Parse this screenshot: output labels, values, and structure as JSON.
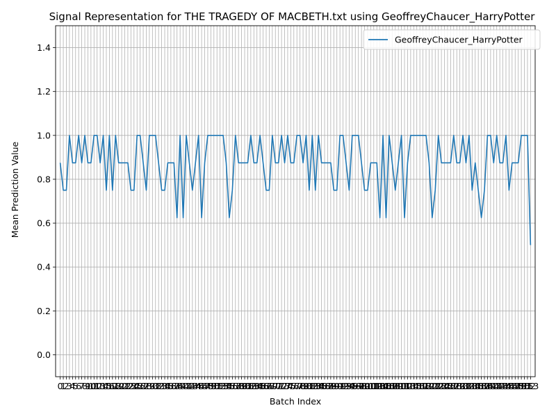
{
  "chart_data": {
    "type": "line",
    "title": "Signal Representation for THE TRAGEDY OF MACBETH.txt using GeoffreyChaucer_HarryPotter",
    "xlabel": "Batch Index",
    "ylabel": "Mean Prediction Value",
    "xlim": [
      -1.5,
      154.5
    ],
    "ylim": [
      -0.1,
      1.5
    ],
    "yticks": [
      "0.0",
      "0.2",
      "0.4",
      "0.6",
      "0.8",
      "1.0",
      "1.2",
      "1.4"
    ],
    "grid": true,
    "legend_position": "top-right",
    "colors": {
      "series": "#1f77b4",
      "grid": "#b0b0b0",
      "axes": "#000000"
    },
    "x": [
      0,
      1,
      2,
      3,
      4,
      5,
      6,
      7,
      8,
      9,
      10,
      11,
      12,
      13,
      14,
      15,
      16,
      17,
      18,
      19,
      20,
      21,
      22,
      23,
      24,
      25,
      26,
      27,
      28,
      29,
      30,
      31,
      32,
      33,
      34,
      35,
      36,
      37,
      38,
      39,
      40,
      41,
      42,
      43,
      44,
      45,
      46,
      47,
      48,
      49,
      50,
      51,
      52,
      53,
      54,
      55,
      56,
      57,
      58,
      59,
      60,
      61,
      62,
      63,
      64,
      65,
      66,
      67,
      68,
      69,
      70,
      71,
      72,
      73,
      74,
      75,
      76,
      77,
      78,
      79,
      80,
      81,
      82,
      83,
      84,
      85,
      86,
      87,
      88,
      89,
      90,
      91,
      92,
      93,
      94,
      95,
      96,
      97,
      98,
      99,
      100,
      101,
      102,
      103,
      104,
      105,
      106,
      107,
      108,
      109,
      110,
      111,
      112,
      113,
      114,
      115,
      116,
      117,
      118,
      119,
      120,
      121,
      122,
      123,
      124,
      125,
      126,
      127,
      128,
      129,
      130,
      131,
      132,
      133,
      134,
      135,
      136,
      137,
      138,
      139,
      140,
      141,
      142,
      143,
      144,
      145,
      146,
      147,
      148,
      149,
      150,
      151,
      152,
      153
    ],
    "series": [
      {
        "name": "GeoffreyChaucer_HarryPotter",
        "values": [
          0.875,
          0.75,
          0.75,
          1.0,
          0.875,
          0.875,
          1.0,
          0.875,
          1.0,
          0.875,
          0.875,
          1.0,
          1.0,
          0.875,
          1.0,
          0.75,
          1.0,
          0.75,
          1.0,
          0.875,
          0.875,
          0.875,
          0.875,
          0.75,
          0.75,
          1.0,
          1.0,
          0.875,
          0.75,
          1.0,
          1.0,
          1.0,
          0.875,
          0.75,
          0.75,
          0.875,
          0.875,
          0.875,
          0.625,
          1.0,
          0.625,
          1.0,
          0.875,
          0.75,
          0.875,
          1.0,
          0.625,
          0.875,
          1.0,
          1.0,
          1.0,
          1.0,
          1.0,
          1.0,
          0.875,
          0.625,
          0.75,
          1.0,
          0.875,
          0.875,
          0.875,
          0.875,
          1.0,
          0.875,
          0.875,
          1.0,
          0.875,
          0.75,
          0.75,
          1.0,
          0.875,
          0.875,
          1.0,
          0.875,
          1.0,
          0.875,
          0.875,
          1.0,
          1.0,
          0.875,
          1.0,
          0.75,
          1.0,
          0.75,
          1.0,
          0.875,
          0.875,
          0.875,
          0.875,
          0.75,
          0.75,
          1.0,
          1.0,
          0.875,
          0.75,
          1.0,
          1.0,
          1.0,
          0.875,
          0.75,
          0.75,
          0.875,
          0.875,
          0.875,
          0.625,
          1.0,
          0.625,
          1.0,
          0.875,
          0.75,
          0.875,
          1.0,
          0.625,
          0.875,
          1.0,
          1.0,
          1.0,
          1.0,
          1.0,
          1.0,
          0.875,
          0.625,
          0.75,
          1.0,
          0.875,
          0.875,
          0.875,
          0.875,
          1.0,
          0.875,
          0.875,
          1.0,
          0.875,
          1.0,
          0.75,
          0.875,
          0.75,
          0.625,
          0.75,
          1.0,
          1.0,
          0.875,
          1.0,
          0.875,
          0.875,
          1.0,
          0.75,
          0.875,
          0.875,
          0.875,
          1.0,
          1.0,
          1.0,
          0.5
        ]
      }
    ]
  }
}
